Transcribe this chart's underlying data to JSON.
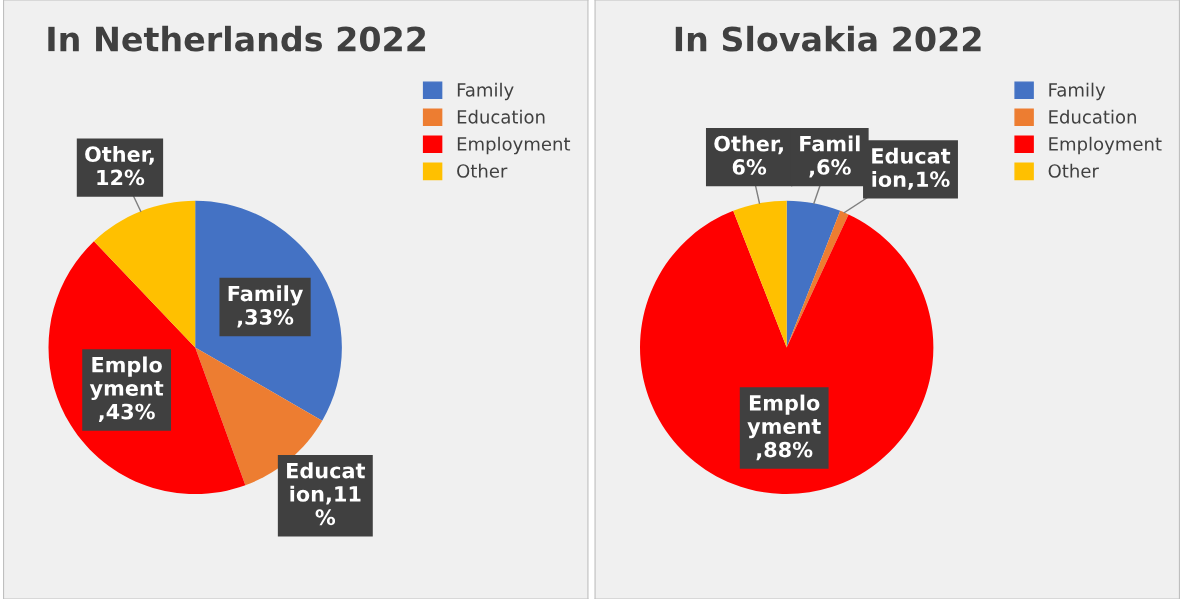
{
  "chart_data": [
    {
      "type": "pie",
      "title": "In Netherlands 2022",
      "categories": [
        "Family",
        "Education",
        "Employment",
        "Other"
      ],
      "values": [
        33,
        11,
        43,
        12
      ],
      "colors": [
        "#4472c4",
        "#ed7d31",
        "#ff0000",
        "#ffc000"
      ],
      "value_labels": [
        "Family\n,33%",
        "Educat\nion,11\n%",
        "Emplo\nyment\n,43%",
        "Other,\n12%"
      ],
      "legend": "top right"
    },
    {
      "type": "pie",
      "title": "In Slovakia 2022",
      "categories": [
        "Family",
        "Education",
        "Employment",
        "Other"
      ],
      "values": [
        6,
        1,
        88,
        6
      ],
      "colors": [
        "#4472c4",
        "#ed7d31",
        "#ff0000",
        "#ffc000"
      ],
      "value_labels": [
        "Famil\n,6%",
        "Educat\nion,1%",
        "Emplo\nyment\n,88%",
        "Other,\n6%"
      ],
      "legend": "top right"
    }
  ]
}
